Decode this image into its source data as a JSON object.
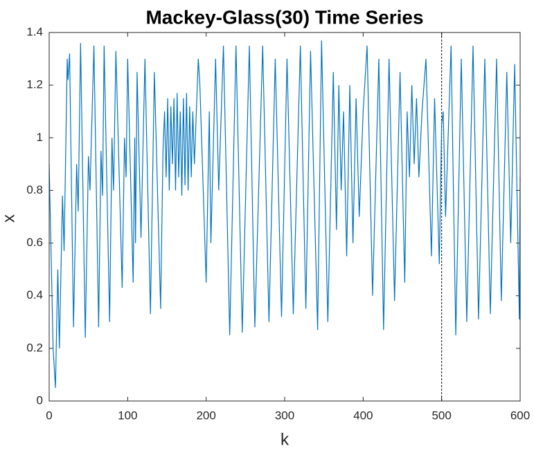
{
  "chart_data": {
    "type": "line",
    "title": "Mackey-Glass(30) Time Series",
    "xlabel": "k",
    "ylabel": "x",
    "x": [
      0,
      5,
      8,
      11,
      13,
      17,
      19,
      23,
      24,
      26,
      31,
      35,
      37,
      40,
      46,
      50,
      52,
      57,
      63,
      66,
      68,
      70,
      77,
      80,
      82,
      85,
      93,
      96,
      98,
      100,
      107,
      109,
      110,
      112,
      117,
      122,
      129,
      134,
      142,
      145,
      147,
      149,
      151,
      153,
      155,
      157,
      159,
      161,
      163,
      165,
      167,
      169,
      171,
      173,
      175,
      177,
      179,
      181,
      183,
      185,
      190,
      192,
      200,
      204,
      206,
      212,
      216,
      222,
      230,
      238,
      246,
      255,
      262,
      272,
      280,
      288,
      296,
      303,
      311,
      320,
      327,
      333,
      342,
      347,
      355,
      362,
      366,
      369,
      372,
      375,
      379,
      383,
      387,
      391,
      395,
      400,
      405,
      412,
      420,
      426,
      433,
      440,
      447,
      453,
      456,
      459,
      462,
      465,
      468,
      471,
      475,
      480,
      487,
      491,
      497,
      500,
      502,
      505,
      512,
      518,
      525,
      532,
      540,
      547,
      555,
      562,
      570,
      576,
      583,
      588,
      593,
      599,
      600
    ],
    "series": [
      {
        "name": "x",
        "color": "#0072bd",
        "values": [
          0.9,
          0.2,
          0.05,
          0.5,
          0.2,
          0.78,
          0.57,
          1.3,
          1.22,
          1.32,
          0.28,
          0.9,
          0.72,
          1.36,
          0.24,
          0.93,
          0.8,
          1.35,
          0.28,
          0.95,
          0.78,
          1.35,
          0.3,
          1.0,
          0.8,
          1.33,
          0.43,
          1.0,
          0.85,
          1.3,
          0.45,
          1.0,
          0.6,
          1.25,
          0.62,
          1.3,
          0.33,
          1.25,
          0.35,
          0.95,
          1.1,
          0.85,
          1.15,
          0.8,
          1.12,
          0.9,
          1.15,
          0.8,
          1.17,
          0.85,
          1.1,
          0.78,
          1.15,
          0.82,
          1.17,
          0.8,
          1.12,
          0.85,
          1.1,
          0.9,
          1.3,
          1.2,
          0.45,
          1.1,
          0.6,
          1.3,
          0.8,
          1.35,
          0.25,
          1.35,
          0.26,
          1.35,
          0.28,
          1.35,
          0.3,
          1.3,
          0.32,
          1.3,
          0.33,
          1.35,
          0.35,
          1.33,
          0.27,
          1.37,
          0.3,
          1.25,
          0.65,
          1.2,
          0.8,
          1.1,
          0.55,
          1.2,
          0.6,
          1.15,
          0.7,
          1.1,
          1.35,
          0.4,
          1.3,
          0.27,
          1.3,
          0.38,
          1.25,
          0.45,
          1.1,
          0.85,
          1.2,
          0.9,
          1.15,
          0.85,
          1.1,
          1.3,
          0.55,
          1.15,
          0.52,
          1.05,
          1.1,
          0.7,
          1.35,
          0.25,
          1.3,
          0.3,
          1.35,
          0.31,
          1.3,
          0.33,
          1.3,
          0.38,
          1.25,
          0.6,
          1.28,
          0.31,
          0.85
        ]
      }
    ],
    "xlim": [
      0,
      600
    ],
    "ylim": [
      0,
      1.4
    ],
    "xticks": [
      0,
      100,
      200,
      300,
      400,
      500,
      600
    ],
    "yticks": [
      0,
      0.2,
      0.4,
      0.6,
      0.8,
      1,
      1.2,
      1.4
    ],
    "vline": 500,
    "grid": false
  }
}
